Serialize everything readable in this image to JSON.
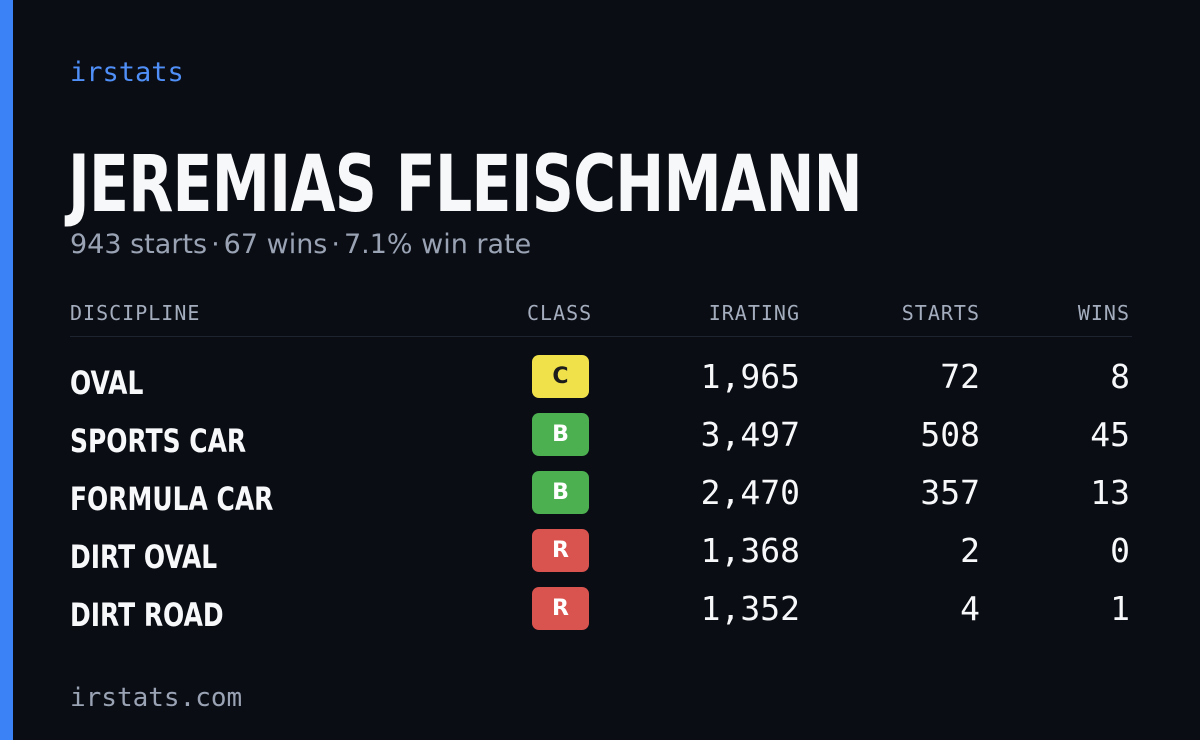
{
  "brand": "irstats",
  "player": {
    "name": "JEREMIAS FLEISCHMANN",
    "summary": {
      "starts": "943 starts",
      "wins": "67 wins",
      "win_rate": "7.1% win rate",
      "separator": "·"
    }
  },
  "table": {
    "headers": {
      "discipline": "DISCIPLINE",
      "class": "CLASS",
      "irating": "IRATING",
      "starts": "STARTS",
      "wins": "WINS"
    },
    "rows": [
      {
        "discipline": "OVAL",
        "class": "C",
        "class_bg": "#f0e14a",
        "class_fg": "#1c1c1c",
        "irating": "1,965",
        "starts": "72",
        "wins": "8"
      },
      {
        "discipline": "SPORTS CAR",
        "class": "B",
        "class_bg": "#4caf50",
        "class_fg": "#ffffff",
        "irating": "3,497",
        "starts": "508",
        "wins": "45"
      },
      {
        "discipline": "FORMULA CAR",
        "class": "B",
        "class_bg": "#4caf50",
        "class_fg": "#ffffff",
        "irating": "2,470",
        "starts": "357",
        "wins": "13"
      },
      {
        "discipline": "DIRT OVAL",
        "class": "R",
        "class_bg": "#d9534f",
        "class_fg": "#ffffff",
        "irating": "1,368",
        "starts": "2",
        "wins": "0"
      },
      {
        "discipline": "DIRT ROAD",
        "class": "R",
        "class_bg": "#d9534f",
        "class_fg": "#ffffff",
        "irating": "1,352",
        "starts": "4",
        "wins": "1"
      }
    ]
  },
  "footer": "irstats.com",
  "colors": {
    "background": "#0a0d14",
    "accent": "#3b82f6",
    "brand": "#4f8ff7",
    "text_primary": "#f7f8fa",
    "text_muted": "#9aa3b4"
  }
}
